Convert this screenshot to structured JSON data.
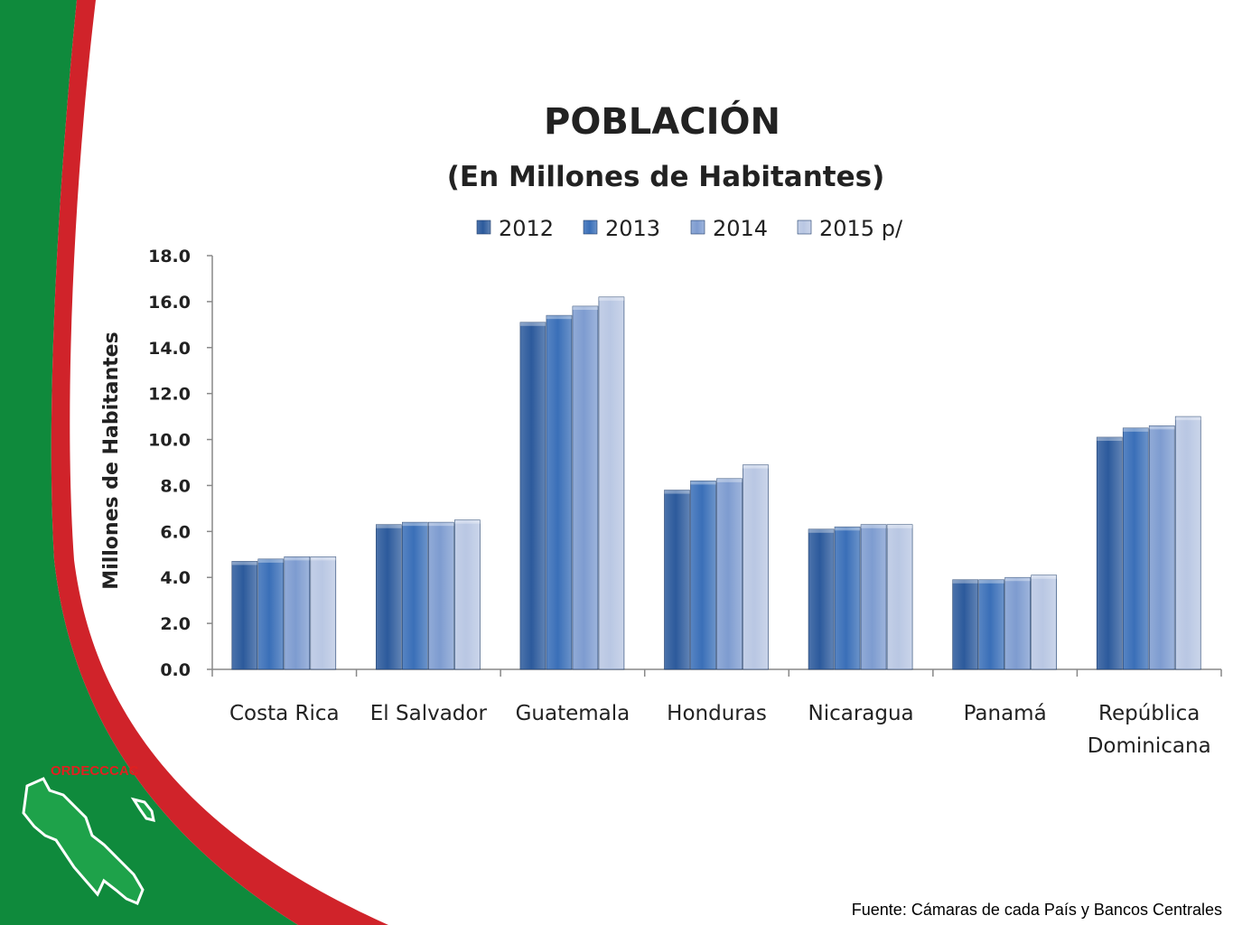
{
  "source": "Fuente: Cámaras de cada País y Bancos Centrales",
  "logo_text": "ORDECCCAC",
  "colors": {
    "green": "#0f8a3c",
    "red": "#d0232a",
    "series": [
      "#2c5a9c",
      "#3a6fb8",
      "#7e9cd0",
      "#b9c7e3"
    ]
  },
  "chart_data": {
    "type": "bar",
    "title": "POBLACIÓN",
    "subtitle": "(En Millones de Habitantes)",
    "ylabel": "Millones de Habitantes",
    "xlabel": "",
    "ylim": [
      0,
      18
    ],
    "yticks": [
      "0.0",
      "2.0",
      "4.0",
      "6.0",
      "8.0",
      "10.0",
      "12.0",
      "14.0",
      "16.0",
      "18.0"
    ],
    "categories": [
      "Costa Rica",
      "El Salvador",
      "Guatemala",
      "Honduras",
      "Nicaragua",
      "Panamá",
      "República Dominicana"
    ],
    "legend_position": "top",
    "grid": false,
    "series": [
      {
        "name": "2012",
        "values": [
          4.7,
          6.3,
          15.1,
          7.8,
          6.1,
          3.9,
          10.1
        ]
      },
      {
        "name": "2013",
        "values": [
          4.8,
          6.4,
          15.4,
          8.2,
          6.2,
          3.9,
          10.5
        ]
      },
      {
        "name": "2014",
        "values": [
          4.9,
          6.4,
          15.8,
          8.3,
          6.3,
          4.0,
          10.6
        ]
      },
      {
        "name": "2015 p/",
        "values": [
          4.9,
          6.5,
          16.2,
          8.9,
          6.3,
          4.1,
          11.0
        ]
      }
    ]
  }
}
